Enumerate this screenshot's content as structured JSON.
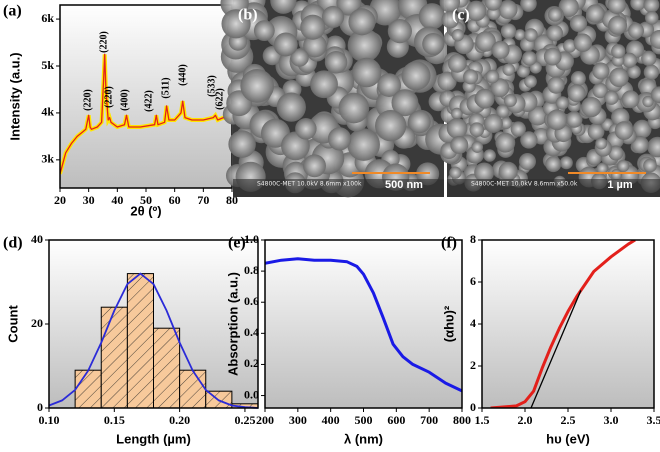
{
  "chart_data": [
    {
      "type": "line",
      "panel_label": "(a)",
      "x_label": "2θ (º)",
      "y_label": "Intensity (a.u.)",
      "xlim": [
        20,
        80
      ],
      "xticks": [
        20,
        30,
        40,
        50,
        60,
        70,
        80
      ],
      "ylim": [
        2400,
        6300
      ],
      "yticks": [
        {
          "value": 3000,
          "label": "3k"
        },
        {
          "value": 4000,
          "label": "4k"
        },
        {
          "value": 5000,
          "label": "5k"
        },
        {
          "value": 6000,
          "label": "6k"
        }
      ],
      "annotations": [
        "(220)",
        "(220)",
        "(220)",
        "(400)",
        "(422)",
        "(511)",
        "(440)",
        "(533)",
        "(622)"
      ],
      "series": [
        {
          "color": "#e3201b",
          "halo_color": "#ffe600",
          "x": [
            20,
            22,
            24,
            26,
            28,
            29,
            29.5,
            30,
            30.5,
            31,
            33,
            34.5,
            35.2,
            35.6,
            36,
            36.8,
            37.3,
            37.8,
            40,
            42.5,
            43.2,
            44,
            48,
            53,
            53.6,
            54.2,
            56.5,
            57.2,
            58,
            60,
            62.2,
            62.8,
            63.6,
            66,
            70,
            73.5,
            74.2,
            75,
            77,
            80
          ],
          "values": [
            2700,
            3150,
            3350,
            3500,
            3600,
            3650,
            3800,
            3950,
            3700,
            3650,
            3700,
            3800,
            4700,
            5250,
            4500,
            3850,
            3900,
            3800,
            3700,
            3750,
            3950,
            3700,
            3700,
            3750,
            3950,
            3750,
            3800,
            4150,
            3850,
            3850,
            4000,
            4250,
            3900,
            3850,
            3850,
            3900,
            3950,
            3850,
            3900,
            3850
          ]
        }
      ]
    },
    {
      "type": "image",
      "panel_label": "(b)",
      "info": "S4800C-MET 10.0kV 8.6mm x100k",
      "scale_bar": "500 nm"
    },
    {
      "type": "image",
      "panel_label": "(c)",
      "info": "S4800C-MET 10.0kV 8.6mm x50.0k",
      "scale_bar": "1 µm"
    },
    {
      "type": "histogram",
      "panel_label": "(d)",
      "x_label": "Length (µm)",
      "y_label": "Count",
      "xlim": [
        0.1,
        0.26
      ],
      "xticks": [
        {
          "value": 0.1,
          "label": "0.10"
        },
        0.15,
        {
          "value": 0.2,
          "label": "0.20"
        },
        0.25
      ],
      "ylim": [
        0,
        40
      ],
      "yticks": [
        0,
        20,
        40
      ],
      "bins": [
        0.12,
        0.14,
        0.16,
        0.18,
        0.2,
        0.22,
        0.24,
        0.26
      ],
      "counts": [
        9,
        24,
        32,
        19,
        9,
        4,
        1
      ],
      "color": "#f7c99b",
      "fit": {
        "color": "#2b2bd8",
        "x": [
          0.1,
          0.11,
          0.12,
          0.13,
          0.14,
          0.15,
          0.16,
          0.17,
          0.18,
          0.19,
          0.2,
          0.21,
          0.22,
          0.23,
          0.24,
          0.25,
          0.26
        ],
        "values": [
          0.6,
          1.8,
          4.3,
          8.9,
          15.6,
          23.2,
          29.5,
          32,
          29.5,
          23.2,
          15.6,
          8.9,
          4.3,
          1.8,
          0.6,
          0.2,
          0
        ]
      }
    },
    {
      "type": "line",
      "panel_label": "(e)",
      "x_label": "λ (nm)",
      "y_label": "Absorption (a.u.)",
      "xlim": [
        200,
        800
      ],
      "xticks": [
        200,
        300,
        400,
        500,
        600,
        700,
        800
      ],
      "ylim": [
        -0.08,
        1.0
      ],
      "yticks": [
        {
          "value": 0,
          "label": "0.0"
        },
        0.2,
        0.4,
        0.6,
        0.8,
        {
          "value": 1,
          "label": "1.0"
        }
      ],
      "series": [
        {
          "color": "#1a1ae6",
          "x": [
            200,
            250,
            300,
            350,
            400,
            450,
            480,
            500,
            530,
            560,
            590,
            620,
            650,
            700,
            750,
            800
          ],
          "values": [
            0.85,
            0.87,
            0.88,
            0.87,
            0.87,
            0.86,
            0.83,
            0.78,
            0.66,
            0.5,
            0.33,
            0.25,
            0.2,
            0.15,
            0.08,
            0.03
          ]
        }
      ]
    },
    {
      "type": "line",
      "panel_label": "(f)",
      "x_label": "hυ (eV)",
      "y_label": "(αhυ)²",
      "xlim": [
        1.5,
        3.5
      ],
      "xticks": [
        1.5,
        {
          "value": 2,
          "label": "2.0"
        },
        2.5,
        {
          "value": 3,
          "label": "3.0"
        },
        3.5
      ],
      "ylim": [
        0,
        8
      ],
      "yticks": [
        0,
        2,
        4,
        6,
        8
      ],
      "series": [
        {
          "color": "#e3201b",
          "x": [
            1.6,
            1.9,
            2.0,
            2.1,
            2.2,
            2.3,
            2.4,
            2.5,
            2.6,
            2.7,
            2.8,
            3.0,
            3.2,
            3.28
          ],
          "values": [
            0,
            0.1,
            0.3,
            0.8,
            1.9,
            2.9,
            3.8,
            4.6,
            5.3,
            5.9,
            6.5,
            7.2,
            7.8,
            8
          ]
        },
        {
          "color": "#000000",
          "x": [
            2.07,
            2.65
          ],
          "values": [
            0,
            5.6
          ]
        }
      ]
    }
  ]
}
